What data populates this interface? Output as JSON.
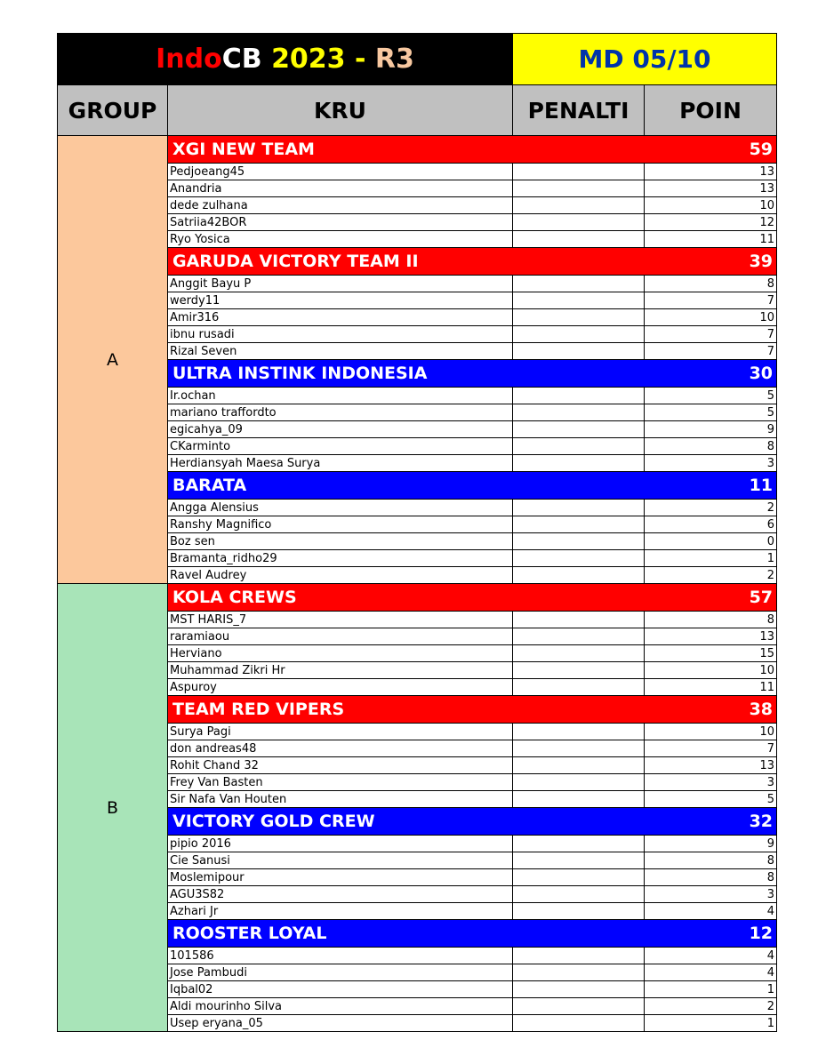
{
  "header": {
    "title_parts": [
      {
        "text": "Indo",
        "color": "#ff0000"
      },
      {
        "text": "CB ",
        "color": "#ffffff"
      },
      {
        "text": "2023 - ",
        "color": "#ffff00"
      },
      {
        "text": "R3",
        "color": "#f8c8a0"
      }
    ],
    "matchday": "MD 05/10"
  },
  "columns": {
    "group": "GROUP",
    "kru": "KRU",
    "penalti": "PENALTI",
    "poin": "POIN"
  },
  "colors": {
    "red_team": "#ff0000",
    "blue_team": "#0000ff",
    "group_a": "#fcc89c",
    "group_b": "#a8e4b8"
  },
  "groups": [
    {
      "name": "A",
      "color": "#fcc89c",
      "teams": [
        {
          "name": "XGI NEW TEAM",
          "points": "59",
          "color": "#ff0000",
          "players": [
            {
              "name": "Pedjoeang45",
              "points": "13"
            },
            {
              "name": "Anandria",
              "points": "13"
            },
            {
              "name": "dede zulhana",
              "points": "10"
            },
            {
              "name": "Satriia42BOR",
              "points": "12"
            },
            {
              "name": "Ryo Yosica",
              "points": "11"
            }
          ]
        },
        {
          "name": "GARUDA VICTORY TEAM II",
          "points": "39",
          "color": "#ff0000",
          "players": [
            {
              "name": "Anggit Bayu P",
              "points": "8"
            },
            {
              "name": "werdy11",
              "points": "7"
            },
            {
              "name": "Amir316",
              "points": "10"
            },
            {
              "name": "ibnu rusadi",
              "points": "7"
            },
            {
              "name": "Rizal Seven",
              "points": "7"
            }
          ]
        },
        {
          "name": "ULTRA INSTINK INDONESIA",
          "points": "30",
          "color": "#0000ff",
          "players": [
            {
              "name": "Ir.ochan",
              "points": "5"
            },
            {
              "name": "mariano traffordto",
              "points": "5"
            },
            {
              "name": "egicahya_09",
              "points": "9"
            },
            {
              "name": "CKarminto",
              "points": "8"
            },
            {
              "name": "Herdiansyah Maesa Surya",
              "points": "3"
            }
          ]
        },
        {
          "name": "BARATA",
          "points": "11",
          "color": "#0000ff",
          "players": [
            {
              "name": "Angga Alensius",
              "points": "2"
            },
            {
              "name": "Ranshy Magnifico",
              "points": "6"
            },
            {
              "name": "Boz sen",
              "points": "0"
            },
            {
              "name": "Bramanta_ridho29",
              "points": "1"
            },
            {
              "name": "Ravel Audrey",
              "points": "2"
            }
          ]
        }
      ]
    },
    {
      "name": "B",
      "color": "#a8e4b8",
      "teams": [
        {
          "name": "KOLA CREWS",
          "points": "57",
          "color": "#ff0000",
          "players": [
            {
              "name": "MST HARIS_7",
              "points": "8"
            },
            {
              "name": "raramiaou",
              "points": "13"
            },
            {
              "name": "Herviano",
              "points": "15"
            },
            {
              "name": "Muhammad Zikri Hr",
              "points": "10"
            },
            {
              "name": "Aspuroy",
              "points": "11"
            }
          ]
        },
        {
          "name": "TEAM RED VIPERS",
          "points": "38",
          "color": "#ff0000",
          "players": [
            {
              "name": "Surya Pagi",
              "points": "10"
            },
            {
              "name": "don andreas48",
              "points": "7"
            },
            {
              "name": "Rohit Chand 32",
              "points": "13"
            },
            {
              "name": "Frey Van Basten",
              "points": "3"
            },
            {
              "name": "Sir Nafa Van Houten",
              "points": "5"
            }
          ]
        },
        {
          "name": "VICTORY GOLD CREW",
          "points": "32",
          "color": "#0000ff",
          "players": [
            {
              "name": "pipio 2016",
              "points": "9"
            },
            {
              "name": "Cie Sanusi",
              "points": "8"
            },
            {
              "name": "Moslemipour",
              "points": "8"
            },
            {
              "name": "AGU3S82",
              "points": "3"
            },
            {
              "name": "Azhari Jr",
              "points": "4"
            }
          ]
        },
        {
          "name": "ROOSTER LOYAL",
          "points": "12",
          "color": "#0000ff",
          "players": [
            {
              "name": "101586",
              "points": "4"
            },
            {
              "name": "Jose Pambudi",
              "points": "4"
            },
            {
              "name": "Iqbal02",
              "points": "1"
            },
            {
              "name": "Aldi mourinho Silva",
              "points": "2"
            },
            {
              "name": "Usep eryana_05",
              "points": "1"
            }
          ]
        }
      ]
    }
  ]
}
